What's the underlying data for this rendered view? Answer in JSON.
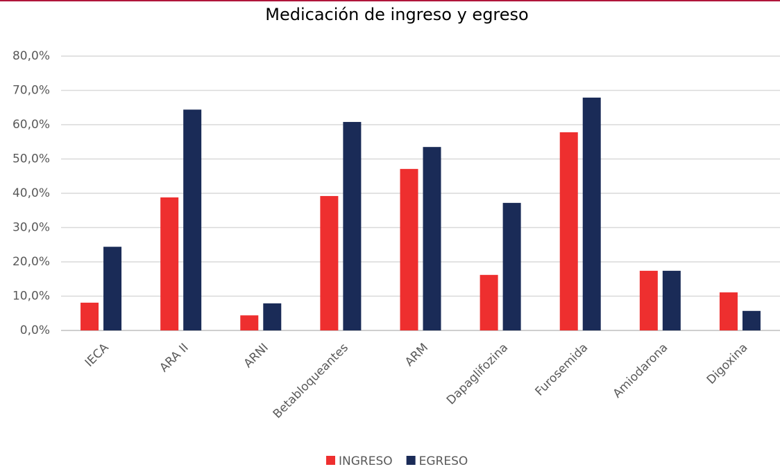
{
  "chart_data": {
    "type": "bar",
    "title": "Medicación de ingreso y egreso",
    "categories": [
      "IECA",
      "ARA II",
      "ARNI",
      "Betabloqueantes",
      "ARM",
      "Dapaglifozina",
      "Furosemida",
      "Amiodarona",
      "Digoxina"
    ],
    "series": [
      {
        "name": "INGRESO",
        "color": "#ee2f2f",
        "values": [
          8.1,
          38.8,
          4.4,
          39.2,
          47.1,
          16.2,
          57.8,
          17.4,
          11.1
        ]
      },
      {
        "name": "EGRESO",
        "color": "#1a2b57",
        "values": [
          24.4,
          64.4,
          7.9,
          60.8,
          53.5,
          37.2,
          67.9,
          17.4,
          5.7
        ]
      }
    ],
    "ylim": [
      0,
      80
    ],
    "yticks": [
      {
        "value": 0,
        "label": "0,0%"
      },
      {
        "value": 10,
        "label": "10,0%"
      },
      {
        "value": 20,
        "label": "20,0%"
      },
      {
        "value": 30,
        "label": "30,0%"
      },
      {
        "value": 40,
        "label": "40,0%"
      },
      {
        "value": 50,
        "label": "50,0%"
      },
      {
        "value": 60,
        "label": "60,0%"
      },
      {
        "value": 70,
        "label": "70,0%"
      },
      {
        "value": 80,
        "label": "80,0%"
      }
    ],
    "grid": true,
    "legend": "bottom"
  }
}
